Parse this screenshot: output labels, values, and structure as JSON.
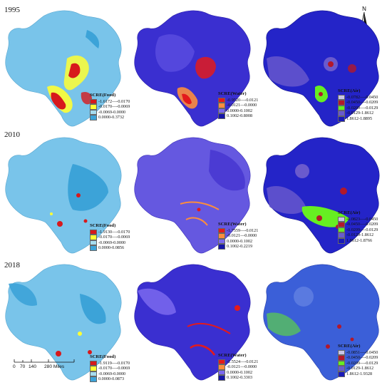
{
  "years": [
    "1995",
    "2010",
    "2018"
  ],
  "legends": {
    "r0c0": {
      "title": "SCRE(Food)",
      "items": [
        {
          "color": "#d7191c",
          "label": "-1.6172—-0.0170"
        },
        {
          "color": "#ffff33",
          "label": "-0.0170—-0.0069"
        },
        {
          "color": "#a6dcef",
          "label": "-0.0069-0.0000"
        },
        {
          "color": "#3ca3d8",
          "label": "0.0000-0.3732"
        }
      ]
    },
    "r0c1": {
      "title": "SCRE(Water)",
      "items": [
        {
          "color": "#e31a1c",
          "label": "-0.9520—-0.0121"
        },
        {
          "color": "#fd8d3c",
          "label": "-0.0121—0.0000"
        },
        {
          "color": "#7b68ee",
          "label": "0.0000-0.1002"
        },
        {
          "color": "#1515a8",
          "label": "0.1002-0.8008"
        }
      ]
    },
    "r0c2": {
      "title": "SCRE(Air)",
      "items": [
        {
          "color": "#c7c5e6",
          "label": "-0.0782—-0.0450"
        },
        {
          "color": "#b2182b",
          "label": "-0.0450—-0.0209"
        },
        {
          "color": "#66ee22",
          "label": "-0.0209—-0.0129"
        },
        {
          "color": "#6a5acd",
          "label": "-0.0129-1.8612"
        },
        {
          "color": "#1a1ab8",
          "label": "1.8612-1.8895"
        }
      ]
    },
    "r1c0": {
      "title": "SCRE(Food)",
      "items": [
        {
          "color": "#d7191c",
          "label": "-1.9130—-0.0170"
        },
        {
          "color": "#ffff33",
          "label": "-0.0170—-0.0069"
        },
        {
          "color": "#a6dcef",
          "label": "-0.0069-0.0000"
        },
        {
          "color": "#3ca3d8",
          "label": "0.0000-0.0856"
        }
      ]
    },
    "r1c1": {
      "title": "SCRE(Water)",
      "items": [
        {
          "color": "#e31a1c",
          "label": "-1.7559—-0.0121"
        },
        {
          "color": "#fd8d3c",
          "label": "-0.0121—0.0000"
        },
        {
          "color": "#7b68ee",
          "label": "0.0000-0.1002"
        },
        {
          "color": "#1515a8",
          "label": "0.1002-0.2219"
        }
      ]
    },
    "r1c2": {
      "title": "SCRE(Air)",
      "items": [
        {
          "color": "#c7c5e6",
          "label": "-0.0823—-0.0450"
        },
        {
          "color": "#b2182b",
          "label": "-0.0450—-0.0209"
        },
        {
          "color": "#66ee22",
          "label": "-0.0209—-0.0129"
        },
        {
          "color": "#6a5acd",
          "label": "-0.0129-1.8612"
        },
        {
          "color": "#1a1ab8",
          "label": "1.8612-1.8766"
        }
      ]
    },
    "r2c0": {
      "title": "SCRE(Food)",
      "items": [
        {
          "color": "#d7191c",
          "label": "-1.9119—-0.0170"
        },
        {
          "color": "#ffff33",
          "label": "-0.0170—-0.0069"
        },
        {
          "color": "#a6dcef",
          "label": "-0.0069-0.0000"
        },
        {
          "color": "#3ca3d8",
          "label": "0.0000-0.0873"
        }
      ]
    },
    "r2c1": {
      "title": "SCRE(Water)",
      "items": [
        {
          "color": "#e31a1c",
          "label": "-1.5524—-0.0121"
        },
        {
          "color": "#fd8d3c",
          "label": "-0.0121—0.0000"
        },
        {
          "color": "#7b68ee",
          "label": "0.0000-0.1002"
        },
        {
          "color": "#1515a8",
          "label": "0.1002-0.3303"
        }
      ]
    },
    "r2c2": {
      "title": "SCRE(Air)",
      "items": [
        {
          "color": "#c7c5e6",
          "label": "-0.0851—-0.0450"
        },
        {
          "color": "#b2182b",
          "label": "-0.0450—-0.0209"
        },
        {
          "color": "#66ee22",
          "label": "-0.0209—-0.0129"
        },
        {
          "color": "#6a5acd",
          "label": "-0.0129-1.8612"
        },
        {
          "color": "#1a1ab8",
          "label": "1.8612-1.9328"
        }
      ]
    }
  },
  "map_fills": {
    "food": "#79c4ea",
    "water": "#3a2fd0",
    "air": "#2424c8"
  },
  "scale_bar": {
    "labels": [
      "0",
      "70",
      "140",
      "280 Miles"
    ]
  },
  "north_arrow": {
    "label": "N"
  }
}
